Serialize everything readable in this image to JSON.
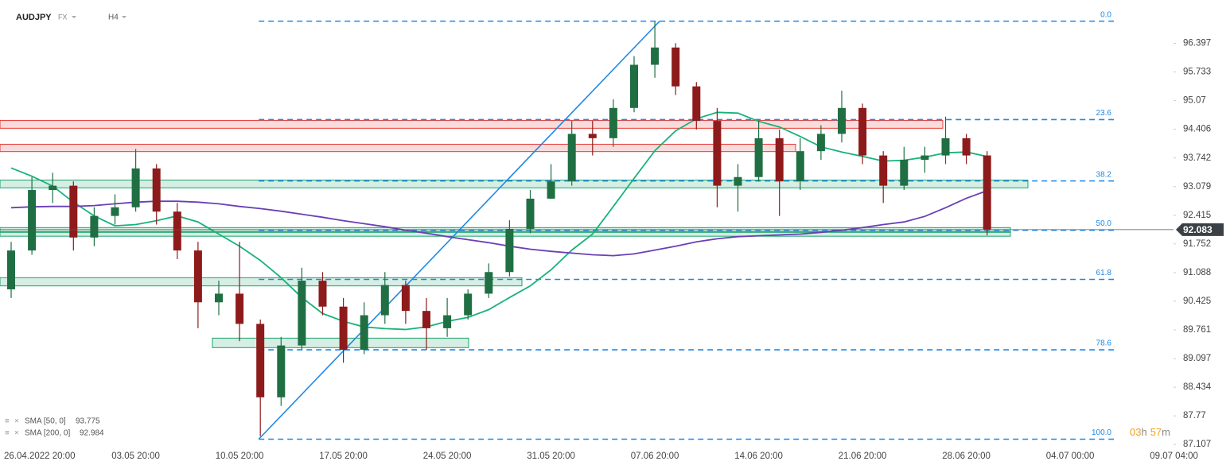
{
  "chart_data": {
    "type": "candlestick",
    "title": "AUDJPY",
    "market": "FX",
    "timeframe": "H4",
    "categories": [
      null,
      "26.04.2022 20:00",
      null,
      null,
      null,
      null,
      "03.05 20:00",
      null,
      null,
      null,
      null,
      "10.05 20:00",
      null,
      null,
      null,
      null,
      "17.05 20:00",
      null,
      null,
      null,
      null,
      "24.05 20:00",
      null,
      null,
      null,
      null,
      "31.05 20:00",
      null,
      null,
      null,
      null,
      "07.06 20:00",
      null,
      null,
      null,
      null,
      "14.06 20:00",
      null,
      null,
      null,
      null,
      "21.06 20:00",
      null,
      null,
      null,
      null,
      "28.06 20:00",
      null,
      null,
      null,
      null,
      "04.07 00:00",
      null,
      null,
      null,
      null,
      "09.07 04:00"
    ],
    "open": [
      90.7,
      91.6,
      93.0,
      93.1,
      91.9,
      92.4,
      92.6,
      93.5,
      92.5,
      91.6,
      90.4,
      90.6,
      89.9,
      88.2,
      89.4,
      90.9,
      90.3,
      89.3,
      90.1,
      90.8,
      90.2,
      89.8,
      90.1,
      90.6,
      91.1,
      92.1,
      92.8,
      93.2,
      94.3,
      94.2,
      94.9,
      95.9,
      96.3,
      95.4,
      94.6,
      93.1,
      93.3,
      94.2,
      93.2,
      93.9,
      94.3,
      94.9,
      93.8,
      93.1,
      93.7,
      93.8,
      94.2,
      93.8,
      null,
      null,
      null,
      null,
      null,
      null,
      null,
      null,
      null
    ],
    "high": [
      91.8,
      93.3,
      93.4,
      93.2,
      92.6,
      92.9,
      93.95,
      93.6,
      92.7,
      91.8,
      90.9,
      91.8,
      90.0,
      89.6,
      91.2,
      91.1,
      90.5,
      90.4,
      91.1,
      90.9,
      90.5,
      90.5,
      90.7,
      91.3,
      92.3,
      93.0,
      93.6,
      94.6,
      94.6,
      95.1,
      96.1,
      96.9,
      96.4,
      95.5,
      94.9,
      93.6,
      94.6,
      94.4,
      94.2,
      94.5,
      95.3,
      95.0,
      93.9,
      94.0,
      94.0,
      94.7,
      94.3,
      93.9,
      null,
      null,
      null,
      null,
      null,
      null,
      null,
      null,
      null
    ],
    "low": [
      90.5,
      91.5,
      92.7,
      91.6,
      91.7,
      92.2,
      92.5,
      92.2,
      91.4,
      89.8,
      90.1,
      89.5,
      87.3,
      88.0,
      89.3,
      90.1,
      89.0,
      89.2,
      89.9,
      89.9,
      89.3,
      89.6,
      90.0,
      90.5,
      91.0,
      92.0,
      92.8,
      93.1,
      93.8,
      94.0,
      94.8,
      95.6,
      95.2,
      94.4,
      92.6,
      92.5,
      93.2,
      92.4,
      93.0,
      93.7,
      94.1,
      93.6,
      92.7,
      93.0,
      93.4,
      93.6,
      93.6,
      91.95,
      null,
      null,
      null,
      null,
      null,
      null,
      null,
      null,
      null
    ],
    "close": [
      91.6,
      93.0,
      93.1,
      91.9,
      92.4,
      92.6,
      93.5,
      92.5,
      91.6,
      90.4,
      90.6,
      89.9,
      88.2,
      89.4,
      90.9,
      90.3,
      89.3,
      90.1,
      90.8,
      90.2,
      89.8,
      90.1,
      90.6,
      91.1,
      92.1,
      92.8,
      93.2,
      94.3,
      94.2,
      94.9,
      95.9,
      96.3,
      95.4,
      94.6,
      93.1,
      93.3,
      94.2,
      93.2,
      93.9,
      94.3,
      94.9,
      93.8,
      93.1,
      93.7,
      93.8,
      94.2,
      93.8,
      92.083,
      null,
      null,
      null,
      null,
      null,
      null,
      null,
      null,
      null
    ],
    "up_color": "#1f6f43",
    "down_color": "#8e1b1b",
    "series": [
      {
        "name": "SMA [50, 0]",
        "color": "#17b27a",
        "values": [
          93.51,
          93.32,
          93.09,
          92.72,
          92.4,
          92.17,
          92.2,
          92.29,
          92.4,
          92.26,
          91.98,
          91.7,
          91.37,
          90.97,
          90.51,
          90.14,
          89.96,
          89.83,
          89.79,
          89.77,
          89.83,
          89.96,
          90.05,
          90.23,
          90.51,
          90.78,
          91.15,
          91.61,
          91.98,
          92.62,
          93.27,
          93.91,
          94.37,
          94.65,
          94.8,
          94.78,
          94.59,
          94.46,
          94.24,
          94.0,
          93.88,
          93.78,
          93.67,
          93.69,
          93.76,
          93.86,
          93.88,
          93.775,
          null,
          null,
          null,
          null,
          null,
          null,
          null,
          null,
          null
        ]
      },
      {
        "name": "SMA [200, 0]",
        "color": "#6a3fb5",
        "values": [
          92.59,
          92.61,
          92.62,
          92.62,
          92.64,
          92.68,
          92.72,
          92.74,
          92.74,
          92.72,
          92.68,
          92.62,
          92.57,
          92.51,
          92.44,
          92.37,
          92.29,
          92.22,
          92.15,
          92.07,
          92.0,
          91.92,
          91.85,
          91.78,
          91.7,
          91.63,
          91.58,
          91.54,
          91.5,
          91.48,
          91.52,
          91.61,
          91.7,
          91.8,
          91.87,
          91.92,
          91.94,
          91.96,
          91.98,
          92.02,
          92.07,
          92.13,
          92.2,
          92.26,
          92.39,
          92.59,
          92.81,
          92.984,
          null,
          null,
          null,
          null,
          null,
          null,
          null,
          null,
          null
        ]
      }
    ],
    "ylim": [
      87.0,
      97.4
    ],
    "yticks": [
      96.397,
      95.733,
      95.07,
      94.406,
      93.742,
      93.079,
      92.415,
      91.752,
      91.088,
      90.425,
      89.761,
      89.097,
      88.434,
      87.77,
      87.107
    ],
    "fib": {
      "color": "#1e88e5",
      "levels": [
        {
          "label": "0.0",
          "value": 96.91
        },
        {
          "label": "23.6",
          "value": 94.63
        },
        {
          "label": "38.2",
          "value": 93.21
        },
        {
          "label": "50.0",
          "value": 92.07
        },
        {
          "label": "61.8",
          "value": 90.93
        },
        {
          "label": "78.6",
          "value": 89.3
        },
        {
          "label": "100.0",
          "value": 87.23
        }
      ]
    },
    "zones": [
      {
        "color": "#e53935",
        "from": 94.43,
        "to": 94.61
      },
      {
        "color": "#e53935",
        "from": 93.89,
        "to": 94.06
      },
      {
        "color": "#1aa36b",
        "from": 93.05,
        "to": 93.23
      },
      {
        "color": "#1aa36b",
        "from": 92.02,
        "to": 92.13
      },
      {
        "color": "#1aa36b",
        "from": 91.93,
        "to": 92.04
      },
      {
        "color": "#1aa36b",
        "from": 90.78,
        "to": 90.97
      },
      {
        "color": "#1aa36b",
        "from": 89.35,
        "to": 89.57
      }
    ],
    "countdown": {
      "hours": "03",
      "hours_unit": "h",
      "minutes": "57",
      "minutes_unit": "m"
    }
  }
}
